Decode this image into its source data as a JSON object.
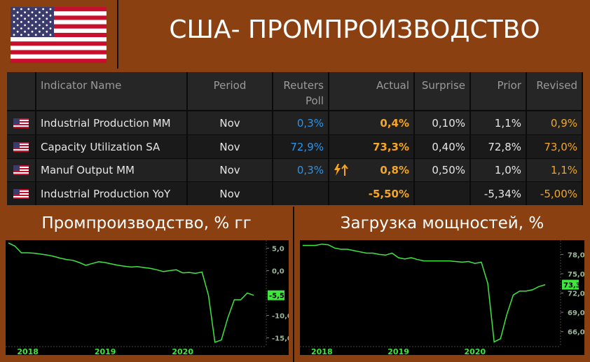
{
  "header": {
    "title": "США- ПРОМПРОИЗВОДСТВО"
  },
  "table": {
    "columns": [
      "Indicator Name",
      "Period",
      "Reuters Poll",
      "Actual",
      "Surprise",
      "Prior",
      "Revised"
    ],
    "rows": [
      [
        "Industrial Production MM",
        "Nov",
        "0,3%",
        "0,4%",
        "0,10%",
        "1,1%",
        "0,9%"
      ],
      [
        "Capacity Utilization SA",
        "Nov",
        "72,9%",
        "73,3%",
        "0,40%",
        "72,8%",
        "73,0%"
      ],
      [
        "Manuf Output MM",
        "Nov",
        "0,3%",
        "0,8%",
        "0,50%",
        "1,0%",
        "1,1%"
      ],
      [
        "Industrial Production YoY",
        "Nov",
        "",
        "-5,50%",
        "",
        "-5,34%",
        "-5,00%"
      ]
    ]
  },
  "chart_data": [
    {
      "type": "line",
      "title": "Промпроизводство, % гг",
      "categories": [
        null,
        null,
        null,
        "2018",
        null,
        null,
        null,
        null,
        null,
        null,
        null,
        null,
        null,
        null,
        null,
        "2019",
        null,
        null,
        null,
        null,
        null,
        null,
        null,
        null,
        null,
        null,
        null,
        "2020",
        null,
        null,
        null,
        null,
        null,
        null,
        null,
        null,
        null,
        null,
        null
      ],
      "series": [
        {
          "name": "Industrial Production YoY",
          "color": "#3ee63e",
          "values": [
            6.2,
            5.5,
            4.0,
            4.0,
            3.9,
            3.7,
            3.5,
            3.2,
            2.8,
            2.5,
            2.3,
            1.8,
            1.2,
            1.6,
            2.0,
            1.8,
            1.5,
            1.2,
            1.0,
            0.8,
            0.9,
            0.7,
            0.5,
            0.2,
            -0.2,
            0.0,
            0.2,
            -0.5,
            -0.4,
            -0.6,
            -0.3,
            -5.5,
            -16.0,
            -15.5,
            -10.5,
            -6.5,
            -6.5,
            -5.0,
            -5.5
          ],
          "value_labels": [
            null,
            null,
            null,
            null,
            null,
            null,
            null,
            null,
            null,
            null,
            null,
            null,
            null,
            null,
            null,
            null,
            null,
            null,
            null,
            null,
            null,
            null,
            null,
            null,
            null,
            null,
            null,
            null,
            null,
            null,
            null,
            null,
            null,
            null,
            null,
            null,
            null,
            null,
            "-5,5"
          ]
        }
      ],
      "ylim": [
        -16.5,
        6.5
      ],
      "yticks": [
        {
          "value": 5,
          "label": "5,0"
        },
        {
          "value": 0,
          "label": "0,0"
        },
        {
          "value": -10,
          "label": "-10,0"
        },
        {
          "value": -15,
          "label": "-15,0"
        }
      ]
    },
    {
      "type": "line",
      "title": "Загрузка мощностей, %",
      "categories": [
        null,
        null,
        null,
        "2018",
        null,
        null,
        null,
        null,
        null,
        null,
        null,
        null,
        null,
        null,
        null,
        "2019",
        null,
        null,
        null,
        null,
        null,
        null,
        null,
        null,
        null,
        null,
        null,
        "2020",
        null,
        null,
        null,
        null,
        null,
        null,
        null,
        null,
        null,
        null,
        null
      ],
      "series": [
        {
          "name": "Capacity Utilization SA",
          "color": "#3ee63e",
          "values": [
            79.4,
            79.4,
            79.4,
            79.6,
            79.5,
            79.0,
            78.8,
            78.8,
            78.6,
            78.4,
            78.2,
            78.2,
            78.0,
            77.9,
            78.2,
            77.5,
            77.3,
            77.5,
            77.2,
            77.0,
            77.0,
            77.0,
            77.0,
            77.0,
            76.9,
            76.8,
            76.9,
            76.6,
            76.8,
            73.5,
            64.4,
            64.9,
            68.7,
            71.7,
            72.3,
            72.3,
            72.5,
            73.0,
            73.3
          ],
          "value_labels": [
            null,
            null,
            null,
            null,
            null,
            null,
            null,
            null,
            null,
            null,
            null,
            null,
            null,
            null,
            null,
            null,
            null,
            null,
            null,
            null,
            null,
            null,
            null,
            null,
            null,
            null,
            null,
            null,
            null,
            null,
            null,
            null,
            null,
            null,
            null,
            null,
            null,
            null,
            "73,3"
          ]
        }
      ],
      "ylim": [
        64,
        80
      ],
      "yticks": [
        {
          "value": 78,
          "label": "78,0"
        },
        {
          "value": 75,
          "label": "75,0"
        },
        {
          "value": 72,
          "label": "72,0"
        },
        {
          "value": 69,
          "label": "69,0"
        },
        {
          "value": 66,
          "label": "66,0"
        }
      ]
    }
  ]
}
